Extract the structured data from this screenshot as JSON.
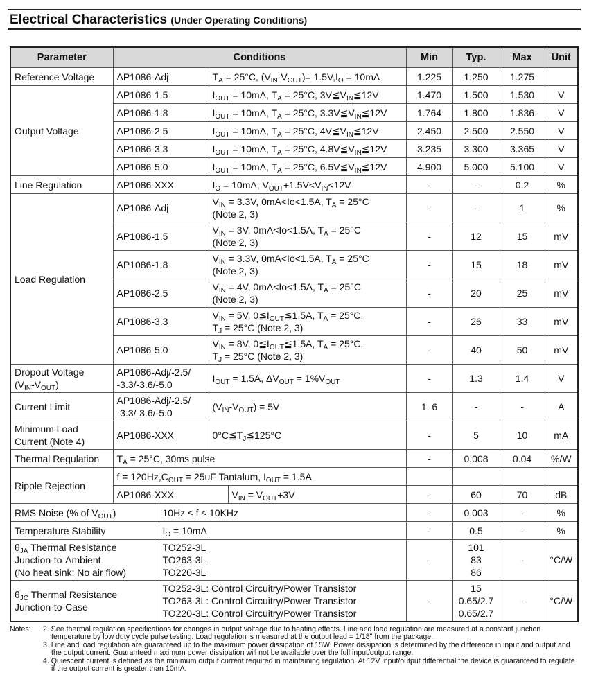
{
  "title": "Electrical Characteristics",
  "subtitle": "(Under Operating Conditions)",
  "table": {
    "header": [
      "Parameter",
      "Conditions",
      "Min",
      "Typ.",
      "Max",
      "Unit"
    ],
    "groups": [
      {
        "parameter": "Reference Voltage",
        "items": [
          {
            "device": "AP1086-Adj",
            "conditions": [
              "T",
              "A",
              " = 25°C, (V",
              "IN",
              "-V",
              "OUT",
              ")= 1.5V,I",
              "O",
              " = 10mA"
            ],
            "min": "1.225",
            "typ": "1.250",
            "max": "1.275"
          }
        ]
      },
      {
        "parameter": "Output Voltage",
        "items": [
          {
            "device": "AP1086-1.5",
            "conditions": [
              "I",
              "OUT",
              " = 10mA, T",
              "A",
              " = 25°C, 3V≦V",
              "IN",
              "≦12V"
            ],
            "min": "1.470",
            "typ": "1.500",
            "max": "1.530",
            "unit": "V"
          },
          {
            "device": "AP1086-1.8",
            "conditions": [
              "I",
              "OUT",
              " = 10mA, T",
              "A",
              " = 25°C, 3.3V≦V",
              "IN",
              "≦12V"
            ],
            "min": "1.764",
            "typ": "1.800",
            "max": "1.836",
            "unit": "V"
          },
          {
            "device": "AP1086-2.5",
            "conditions": [
              "I",
              "OUT",
              " = 10mA, T",
              "A",
              " = 25°C, 4V≦V",
              "IN",
              "≦12V"
            ],
            "min": "2.450",
            "typ": "2.500",
            "max": "2.550",
            "unit": "V"
          },
          {
            "device": "AP1086-3.3",
            "conditions": [
              "I",
              "OUT",
              " = 10mA, T",
              "A",
              " = 25°C, 4.8V≦V",
              "IN",
              "≦12V"
            ],
            "min": "3.235",
            "typ": "3.300",
            "max": "3.365",
            "unit": "V"
          },
          {
            "device": "AP1086-5.0",
            "conditions": [
              "I",
              "OUT",
              " = 10mA, T",
              "A",
              " = 25°C, 6.5V≦V",
              "IN",
              "≦12V"
            ],
            "min": "4.900",
            "typ": "5.000",
            "max": "5.100",
            "unit": "V"
          }
        ]
      },
      {
        "parameter": "Line Regulation",
        "items": [
          {
            "device": "AP1086-XXX",
            "conditions": [
              "I",
              "O",
              " = 10mA, V",
              "OUT",
              "+1.5V<V",
              "IN",
              "<12V"
            ],
            "min": "-",
            "typ": "-",
            "max": "0.2",
            "unit": "%"
          }
        ]
      },
      {
        "parameter": "Load Regulation",
        "items": [
          {
            "device": "AP1086-Adj",
            "conditions": [
              [
                "V",
                "IN",
                " = 3.3V, 0mA<Io<1.5A, T",
                "A",
                " = 25°C"
              ],
              [
                "(Note 2, 3)"
              ]
            ],
            "min": "-",
            "typ": "-",
            "max": "1",
            "unit": "%"
          },
          {
            "device": "AP1086-1.5",
            "conditions": [
              [
                "V",
                "IN",
                " = 3V, 0mA<Io<1.5A, T",
                "A",
                " = 25°C"
              ],
              [
                "(Note 2, 3)"
              ]
            ],
            "min": "-",
            "typ": "12",
            "max": "15",
            "unit": "mV"
          },
          {
            "device": "AP1086-1.8",
            "conditions": [
              [
                "V",
                "IN",
                " = 3.3V, 0mA<Io<1.5A, T",
                "A",
                " = 25°C"
              ],
              [
                "(Note 2, 3)"
              ]
            ],
            "min": "-",
            "typ": "15",
            "max": "18",
            "unit": "mV"
          },
          {
            "device": "AP1086-2.5",
            "conditions": [
              [
                "V",
                "IN",
                " = 4V, 0mA<Io<1.5A, T",
                "A",
                " = 25°C"
              ],
              [
                "(Note 2, 3)"
              ]
            ],
            "min": "-",
            "typ": "20",
            "max": "25",
            "unit": "mV"
          },
          {
            "device": "AP1086-3.3",
            "conditions": [
              [
                "V",
                "IN",
                " = 5V, 0≦I",
                "OUT",
                "≦1.5A, T",
                "A",
                " = 25°C,"
              ],
              [
                "T",
                "J",
                " = 25°C (Note 2, 3)"
              ]
            ],
            "min": "-",
            "typ": "26",
            "max": "33",
            "unit": "mV"
          },
          {
            "device": "AP1086-5.0",
            "conditions": [
              [
                "V",
                "IN",
                " = 8V, 0≦I",
                "OUT",
                "≦1.5A, T",
                "A",
                " = 25°C,"
              ],
              [
                "T",
                "J",
                " = 25°C (Note 2, 3)"
              ]
            ],
            "min": "-",
            "typ": "40",
            "max": "50",
            "unit": "mV"
          }
        ]
      },
      {
        "parameter": [
          [
            "Dropout Voltage"
          ],
          [
            "(V",
            "IN",
            "-V",
            "OUT",
            ")"
          ]
        ],
        "items": [
          {
            "device": [
              [
                "AP1086-Adj/-2.5/"
              ],
              [
                "-3.3/-3.6/-5.0"
              ]
            ],
            "conditions": [
              "I",
              "OUT",
              " = 1.5A, ΔV",
              "OUT",
              " = 1%V",
              "OUT"
            ],
            "min": "-",
            "typ": "1.3",
            "max": "1.4",
            "unit": "V"
          }
        ]
      },
      {
        "parameter": "Current Limit",
        "items": [
          {
            "device": [
              [
                "AP1086-Adj/-2.5/"
              ],
              [
                "-3.3/-3.6/-5.0"
              ]
            ],
            "conditions": [
              "(V",
              "IN",
              "-V",
              "OUT",
              ") = 5V"
            ],
            "min": "1. 6",
            "typ": "-",
            "max": "-",
            "unit": "A"
          }
        ]
      },
      {
        "parameter": [
          [
            "Minimum Load"
          ],
          [
            "Current (Note 4)"
          ]
        ],
        "items": [
          {
            "device": "AP1086-XXX",
            "conditions": [
              "0°C≦T",
              "J",
              "≦125°C"
            ],
            "min": "-",
            "typ": "5",
            "max": "10",
            "unit": "mA"
          }
        ]
      },
      {
        "parameter": "Thermal Regulation",
        "items": [
          {
            "conditions": [
              "T",
              "A",
              " = 25°C, 30ms pulse"
            ],
            "min": "-",
            "typ": "0.008",
            "max": "0.04",
            "unit": "%/W"
          }
        ]
      },
      {
        "parameter": "Ripple Rejection",
        "items": [
          {
            "conditions": [
              "f = 120Hz,C",
              "OUT",
              " = 25uF Tantalum, I",
              "OUT",
              " = 1.5A"
            ]
          },
          {
            "device": "AP1086-XXX",
            "conditions": [
              "V",
              "IN",
              " = V",
              "OUT",
              "+3V"
            ],
            "min": "-",
            "typ": "60",
            "max": "70",
            "unit": "dB"
          }
        ]
      },
      {
        "parameter": [
          "RMS Noise (% of V",
          "OUT",
          ")"
        ],
        "items": [
          {
            "conditions": "10Hz ≤ f ≤ 10KHz",
            "min": "-",
            "typ": "0.003",
            "max": "-",
            "unit": "%"
          }
        ]
      },
      {
        "parameter": "Temperature Stability",
        "items": [
          {
            "conditions": [
              "I",
              "O",
              " = 10mA"
            ],
            "min": "-",
            "typ": "0.5",
            "max": "-",
            "unit": "%"
          }
        ]
      },
      {
        "parameter": [
          [
            "θ",
            "JA",
            " Thermal Resistance"
          ],
          [
            "Junction-to-Ambient"
          ],
          [
            "(No heat sink; No air flow)"
          ]
        ],
        "items": [
          {
            "conditions": [
              [
                "TO252-3L"
              ],
              [
                "TO263-3L"
              ],
              [
                "TO220-3L"
              ]
            ],
            "min": "-",
            "typ": [
              [
                "101"
              ],
              [
                "83"
              ],
              [
                "86"
              ]
            ],
            "max": "-",
            "unit": "°C/W"
          }
        ]
      },
      {
        "parameter": [
          [
            "θ",
            "JC",
            " Thermal Resistance"
          ],
          [
            "Junction-to-Case"
          ]
        ],
        "items": [
          {
            "conditions": [
              [
                "TO252-3L: Control Circuitry/Power Transistor"
              ],
              [
                "TO263-3L: Control Circuitry/Power Transistor"
              ],
              [
                "TO220-3L: Control Circuitry/Power Transistor"
              ]
            ],
            "min": "-",
            "typ": [
              [
                "15"
              ],
              [
                "0.65/2.7"
              ],
              [
                "0.65/2.7"
              ]
            ],
            "max": "-",
            "unit": "°C/W"
          }
        ]
      }
    ]
  },
  "notes": {
    "label": "Notes:",
    "items": [
      "2. See thermal regulation specifications for changes in output voltage due to heating effects. Line and load regulation are measured at a constant junction temperature by low duty cycle pulse testing. Load regulation is measured at the output lead = 1/18\" from the package.",
      "3. Line and load regulation are guaranteed up to the maximum power dissipation of 15W. Power dissipation is determined by the difference in input and output and the output current. Guaranteed maximum power dissipation will not be available over the full input/output range.",
      "4. Quiescent current is defined as the minimum output current required in maintaining regulation. At 12V input/output differential the device is guaranteed to regulate if the output current is greater than 10mA."
    ]
  }
}
